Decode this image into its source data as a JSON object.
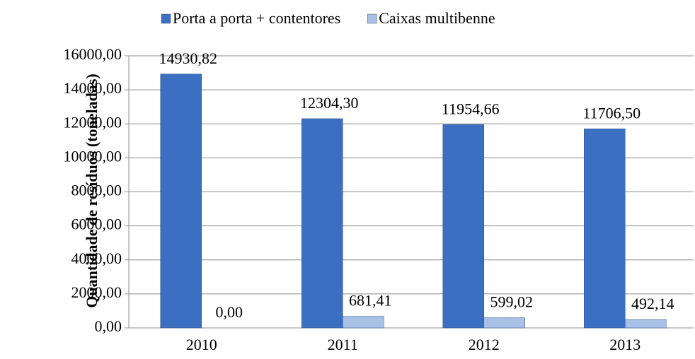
{
  "chart_data": {
    "type": "bar",
    "y_label": "Quantidade de resíduos (toneladas)",
    "categories": [
      "2010",
      "2011",
      "2012",
      "2013"
    ],
    "series": [
      {
        "name": "Porta a porta + contentores",
        "color": "#3b6fc2",
        "values": [
          14930.82,
          12304.3,
          11954.66,
          11706.5
        ],
        "value_labels": [
          "14930,82",
          "12304,30",
          "11954,66",
          "11706,50"
        ]
      },
      {
        "name": "Caixas multibenne",
        "color": "#a8bfe6",
        "values": [
          0,
          681.41,
          599.02,
          492.14
        ],
        "value_labels": [
          "0,00",
          "681,41",
          "599,02",
          "492,14"
        ]
      }
    ],
    "ylim": [
      0,
      16000
    ],
    "yticks": [
      {
        "value": 0,
        "label": "0,00"
      },
      {
        "value": 2000,
        "label": "2000,00"
      },
      {
        "value": 4000,
        "label": "4000,00"
      },
      {
        "value": 6000,
        "label": "6000,00"
      },
      {
        "value": 8000,
        "label": "8000,00"
      },
      {
        "value": 10000,
        "label": "10000,00"
      },
      {
        "value": 12000,
        "label": "12000,00"
      },
      {
        "value": 14000,
        "label": "14000,00"
      },
      {
        "value": 16000,
        "label": "16000,00"
      }
    ],
    "grid": true,
    "legend": "top"
  }
}
